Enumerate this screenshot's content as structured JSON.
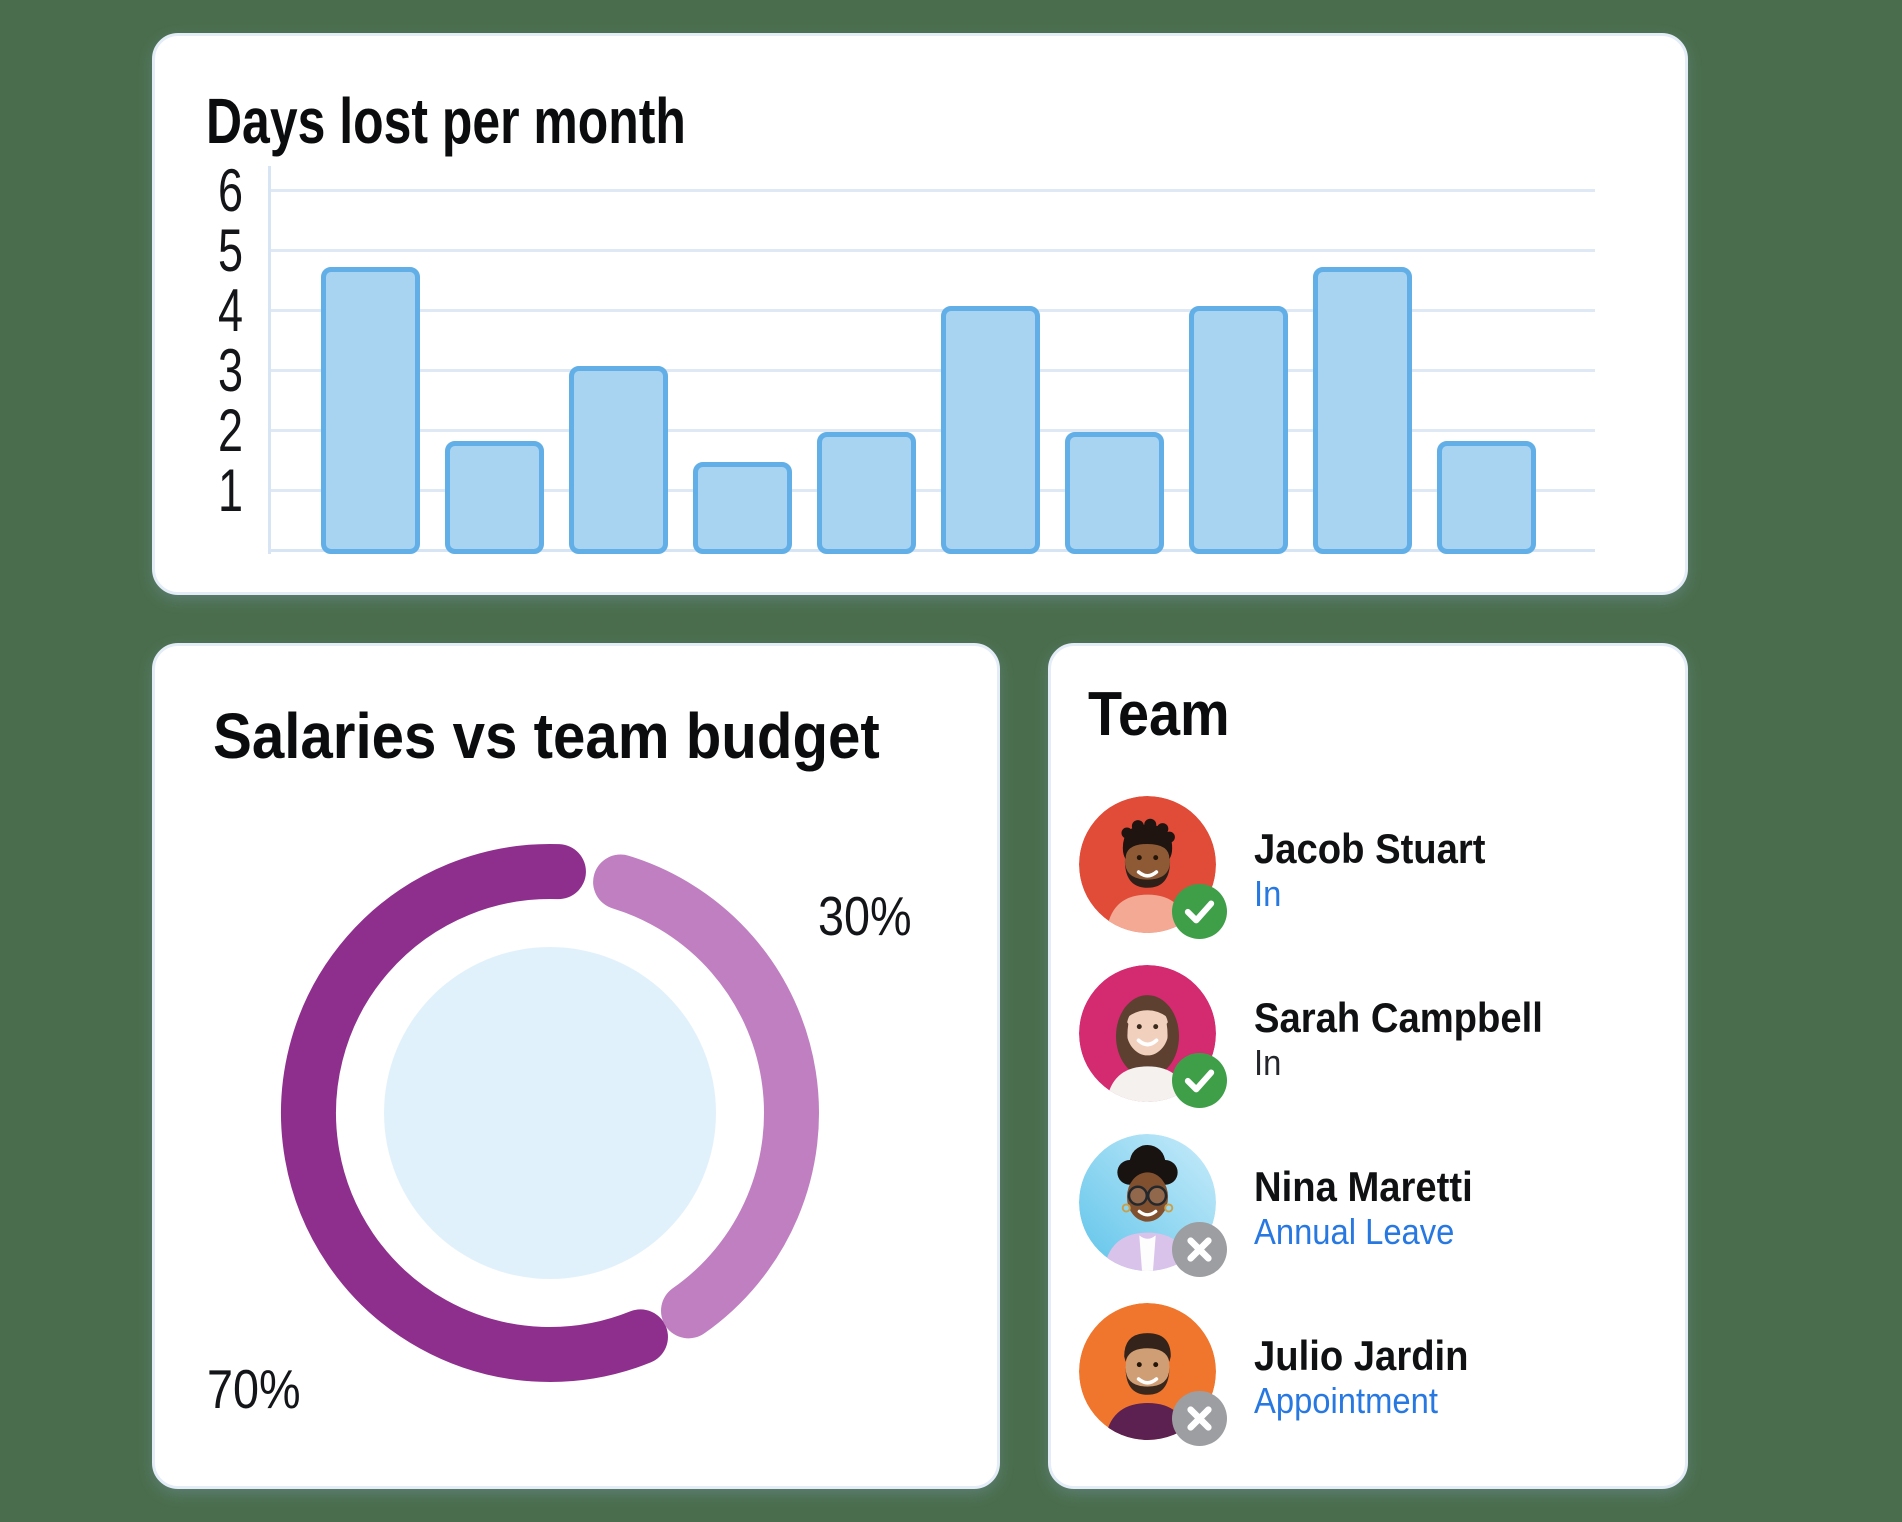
{
  "colors": {
    "page_bg": "#4a6e4d",
    "card_border": "#e3ecf7",
    "grid": "#dfe9f6",
    "axis": "#d7e4f3",
    "bar_fill": "#a8d4f2",
    "bar_stroke": "#61afe6",
    "purple_dark": "#8e2f8e",
    "purple_light": "#bf7fc1",
    "inner_blue": "#e1f1fb",
    "status_blue": "#2778e1",
    "badge_green": "#3f9f49",
    "badge_gray": "#9c9ea1"
  },
  "days_card": {
    "title": "Days lost per month"
  },
  "salaries_card": {
    "title": "Salaries vs team budget",
    "label_light": "30%",
    "label_dark": "70%"
  },
  "team_card": {
    "title": "Team",
    "members": [
      {
        "name": "Jacob Stuart",
        "status": "In",
        "status_style": "blue",
        "presence": "in"
      },
      {
        "name": "Sarah Campbell",
        "status": "In",
        "status_style": "dark",
        "presence": "in"
      },
      {
        "name": "Nina Maretti",
        "status": "Annual Leave",
        "status_style": "blue",
        "presence": "out"
      },
      {
        "name": "Julio Jardin",
        "status": "Appointment",
        "status_style": "blue",
        "presence": "out"
      }
    ]
  },
  "chart_data": [
    {
      "type": "bar",
      "title": "Days lost per month",
      "categories": [
        "",
        "",
        "",
        "",
        "",
        "",
        "",
        "",
        "",
        ""
      ],
      "values": [
        4.7,
        1.8,
        3.05,
        1.45,
        1.95,
        4.05,
        1.95,
        4.05,
        4.7,
        1.8
      ],
      "xlabel": "",
      "ylabel": "",
      "ylim": [
        0,
        6
      ],
      "yticks": [
        1,
        2,
        3,
        4,
        5,
        6
      ],
      "grid": true
    },
    {
      "type": "pie",
      "subtype": "donut",
      "title": "Salaries vs team budget",
      "labels": [
        "70%",
        "30%"
      ],
      "values": [
        70,
        30
      ],
      "colors": [
        "#8e2f8e",
        "#bf7fc1"
      ],
      "legend": false,
      "arc_layout": {
        "dark_start": 292,
        "dark_end": 88,
        "light_start": 73,
        "light_end": -55,
        "radius": 241.5,
        "stroke": 55
      }
    }
  ]
}
